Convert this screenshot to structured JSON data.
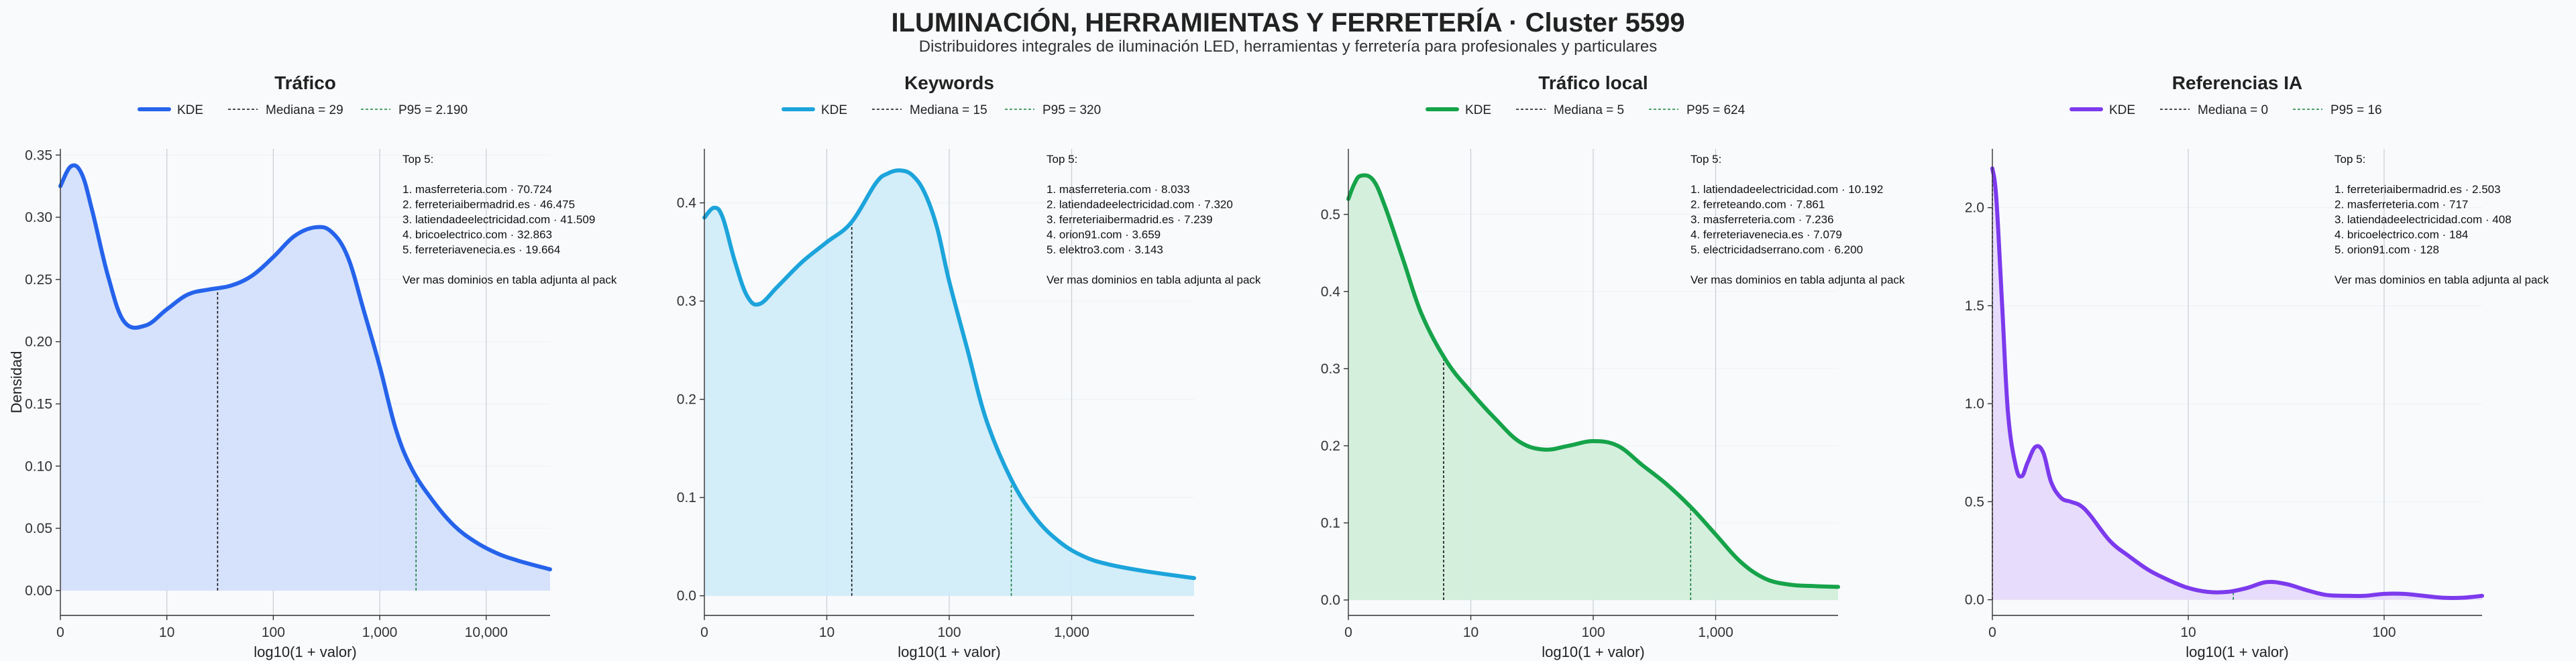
{
  "title": "ILUMINACIÓN, HERRAMIENTAS Y FERRETERÍA · Cluster 5599",
  "subtitle": "Distribuidores integrales de iluminación LED, herramientas y ferretería para profesionales y particulares",
  "chart_data": [
    {
      "type": "area",
      "title": "Tráfico",
      "xlabel": "log10(1 + valor)",
      "ylabel": "Densidad",
      "color": "#2563eb",
      "fill": "#d4e0fb",
      "xlim": [
        0,
        4.6
      ],
      "ylim": [
        -0.02,
        0.355
      ],
      "xticks": [
        0,
        1,
        2,
        3,
        4
      ],
      "xtick_labels": [
        "0",
        "10",
        "100",
        "1,000",
        "10,000"
      ],
      "yticks": [
        0,
        0.05,
        0.1,
        0.15,
        0.2,
        0.25,
        0.3,
        0.35
      ],
      "ytick_labels": [
        "0.00",
        "0.05",
        "0.10",
        "0.15",
        "0.20",
        "0.25",
        "0.30",
        "0.35"
      ],
      "legend": {
        "kde": "KDE",
        "median": "Mediana = 29",
        "p95": "P95 = 2.190"
      },
      "median_x": 1.477,
      "p95_x": 3.341,
      "top5_header": "Top 5:",
      "top5": [
        "1. masferreteria.com · 70.724",
        "2. ferreteriaibermadrid.es · 46.475",
        "3. latiendadeelectricidad.com · 41.509",
        "4. bricoelectrico.com · 32.863",
        "5. ferreteriavenecia.es · 19.664"
      ],
      "top5_footer": "Ver mas dominios en tabla adjunta al pack",
      "x": [
        0,
        0.1,
        0.2,
        0.3,
        0.45,
        0.6,
        0.8,
        1.0,
        1.2,
        1.4,
        1.6,
        1.8,
        2.0,
        2.2,
        2.4,
        2.55,
        2.7,
        2.85,
        3.0,
        3.15,
        3.3,
        3.5,
        3.7,
        3.9,
        4.1,
        4.3,
        4.6
      ],
      "y": [
        0.325,
        0.341,
        0.335,
        0.305,
        0.252,
        0.216,
        0.213,
        0.226,
        0.238,
        0.242,
        0.245,
        0.253,
        0.268,
        0.285,
        0.292,
        0.288,
        0.268,
        0.225,
        0.18,
        0.13,
        0.098,
        0.072,
        0.052,
        0.039,
        0.03,
        0.024,
        0.017
      ]
    },
    {
      "type": "area",
      "title": "Keywords",
      "xlabel": "log10(1 + valor)",
      "color": "#1ca4db",
      "fill": "#d1ecf9",
      "xlim": [
        0,
        4.0
      ],
      "ylim": [
        -0.02,
        0.455
      ],
      "xticks": [
        0,
        1,
        2,
        3
      ],
      "xtick_labels": [
        "0",
        "10",
        "100",
        "1,000"
      ],
      "yticks": [
        0,
        0.1,
        0.2,
        0.3,
        0.4
      ],
      "ytick_labels": [
        "0.0",
        "0.1",
        "0.2",
        "0.3",
        "0.4"
      ],
      "legend": {
        "kde": "KDE",
        "median": "Mediana = 15",
        "p95": "P95 = 320"
      },
      "median_x": 1.204,
      "p95_x": 2.507,
      "top5_header": "Top 5:",
      "top5": [
        "1. masferreteria.com · 8.033",
        "2. latiendadeelectricidad.com · 7.320",
        "3. ferreteriaibermadrid.es · 7.239",
        "4. orion91.com · 3.659",
        "5. elektro3.com · 3.143"
      ],
      "top5_footer": "Ver mas dominios en tabla adjunta al pack",
      "x": [
        0,
        0.08,
        0.15,
        0.25,
        0.35,
        0.45,
        0.6,
        0.8,
        1.0,
        1.2,
        1.4,
        1.5,
        1.6,
        1.7,
        1.8,
        1.9,
        2.0,
        2.15,
        2.3,
        2.5,
        2.7,
        2.9,
        3.1,
        3.3,
        3.6,
        4.0
      ],
      "y": [
        0.385,
        0.395,
        0.385,
        0.34,
        0.305,
        0.297,
        0.315,
        0.34,
        0.36,
        0.38,
        0.42,
        0.43,
        0.433,
        0.428,
        0.41,
        0.375,
        0.32,
        0.25,
        0.18,
        0.12,
        0.08,
        0.055,
        0.04,
        0.032,
        0.025,
        0.018
      ]
    },
    {
      "type": "area",
      "title": "Tráfico local",
      "xlabel": "log10(1 + valor)",
      "color": "#16a34a",
      "fill": "#d3eedb",
      "xlim": [
        0,
        4.0
      ],
      "ylim": [
        -0.02,
        0.585
      ],
      "xticks": [
        0,
        1,
        2,
        3
      ],
      "xtick_labels": [
        "0",
        "10",
        "100",
        "1,000"
      ],
      "yticks": [
        0,
        0.1,
        0.2,
        0.3,
        0.4,
        0.5
      ],
      "ytick_labels": [
        "0.0",
        "0.1",
        "0.2",
        "0.3",
        "0.4",
        "0.5"
      ],
      "legend": {
        "kde": "KDE",
        "median": "Mediana = 5",
        "p95": "P95 = 624"
      },
      "median_x": 0.778,
      "p95_x": 2.796,
      "top5_header": "Top 5:",
      "top5": [
        "1. latiendadeelectricidad.com · 10.192",
        "2. ferreteando.com · 7.861",
        "3. masferreteria.com · 7.236",
        "4. ferreteriavenecia.es · 7.079",
        "5. electricidadserrano.com · 6.200"
      ],
      "top5_footer": "Ver mas dominios en tabla adjunta al pack",
      "x": [
        0,
        0.05,
        0.1,
        0.2,
        0.3,
        0.45,
        0.6,
        0.8,
        1.0,
        1.2,
        1.4,
        1.6,
        1.8,
        2.0,
        2.2,
        2.4,
        2.6,
        2.8,
        3.0,
        3.2,
        3.4,
        3.6,
        3.8,
        4.0
      ],
      "y": [
        0.52,
        0.54,
        0.55,
        0.545,
        0.51,
        0.44,
        0.37,
        0.31,
        0.27,
        0.235,
        0.205,
        0.195,
        0.2,
        0.206,
        0.2,
        0.175,
        0.15,
        0.12,
        0.085,
        0.05,
        0.028,
        0.02,
        0.018,
        0.017
      ]
    },
    {
      "type": "area",
      "title": "Referencias IA",
      "xlabel": "log10(1 + valor)",
      "color": "#7c3aed",
      "fill": "#e6dafb",
      "xlim": [
        0,
        2.5
      ],
      "ylim": [
        -0.08,
        2.3
      ],
      "xticks": [
        0,
        1,
        2
      ],
      "xtick_labels": [
        "0",
        "10",
        "100"
      ],
      "yticks": [
        0,
        0.5,
        1.0,
        1.5,
        2.0
      ],
      "ytick_labels": [
        "0.0",
        "0.5",
        "1.0",
        "1.5",
        "2.0"
      ],
      "legend": {
        "kde": "KDE",
        "median": "Mediana = 0",
        "p95": "P95 = 16"
      },
      "median_x": 0,
      "p95_x": 1.23,
      "top5_header": "Top 5:",
      "top5": [
        "1. ferreteriaibermadrid.es · 2.503",
        "2. masferreteria.com · 717",
        "3. latiendadeelectricidad.com · 408",
        "4. bricoelectrico.com · 184",
        "5. orion91.com · 128"
      ],
      "top5_footer": "Ver mas dominios en tabla adjunta al pack",
      "x": [
        0,
        0.02,
        0.05,
        0.08,
        0.12,
        0.15,
        0.18,
        0.22,
        0.26,
        0.3,
        0.35,
        0.4,
        0.45,
        0.5,
        0.6,
        0.7,
        0.8,
        0.9,
        1.0,
        1.1,
        1.2,
        1.3,
        1.4,
        1.5,
        1.6,
        1.7,
        1.8,
        1.9,
        2.0,
        2.1,
        2.2,
        2.3,
        2.4,
        2.5
      ],
      "y": [
        2.2,
        2.05,
        1.5,
        0.95,
        0.68,
        0.63,
        0.7,
        0.78,
        0.75,
        0.6,
        0.52,
        0.5,
        0.48,
        0.43,
        0.3,
        0.22,
        0.15,
        0.1,
        0.06,
        0.04,
        0.04,
        0.06,
        0.09,
        0.08,
        0.05,
        0.025,
        0.02,
        0.02,
        0.03,
        0.03,
        0.02,
        0.01,
        0.01,
        0.02
      ]
    }
  ]
}
